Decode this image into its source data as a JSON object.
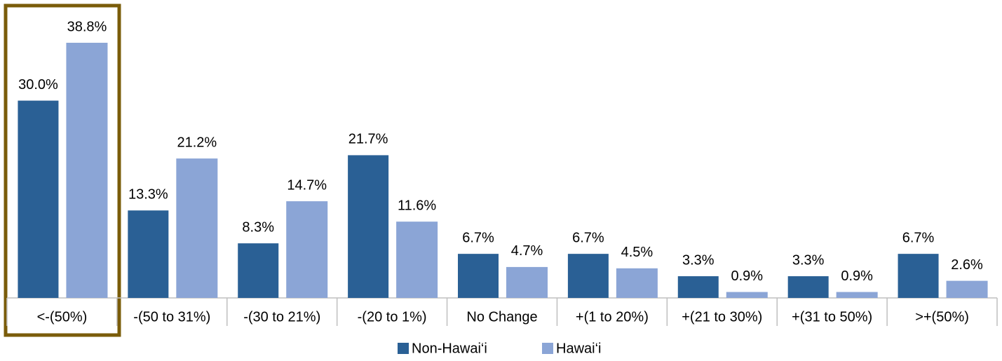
{
  "chart_data": {
    "type": "bar",
    "categories": [
      "<-(50%)",
      "-(50 to 31%)",
      "-(30 to 21%)",
      "-(20 to 1%)",
      "No Change",
      "+(1 to 20%)",
      "+(21 to 30%)",
      "+(31 to 50%)",
      ">+(50%)"
    ],
    "series": [
      {
        "name": "Non-Hawai‘i",
        "color": "#2a6095",
        "values": [
          30.0,
          13.3,
          8.3,
          21.7,
          6.7,
          6.7,
          3.3,
          3.3,
          6.7
        ],
        "value_labels": [
          "30.0%",
          "13.3%",
          "8.3%",
          "21.7%",
          "6.7%",
          "6.7%",
          "3.3%",
          "3.3%",
          "6.7%"
        ]
      },
      {
        "name": "Hawai‘i",
        "color": "#8ba5d6",
        "values": [
          38.8,
          21.2,
          14.7,
          11.6,
          4.7,
          4.5,
          0.9,
          0.9,
          2.6
        ],
        "value_labels": [
          "38.8%",
          "21.2%",
          "14.7%",
          "11.6%",
          "4.7%",
          "4.5%",
          "0.9%",
          "0.9%",
          "2.6%"
        ]
      }
    ],
    "legend": "bottom"
  }
}
